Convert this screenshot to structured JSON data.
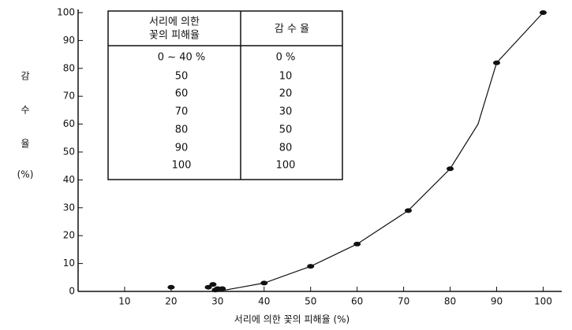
{
  "chart_data": {
    "type": "scatter",
    "xlabel": "서리에 의한 꽃의 피해율 (%)",
    "ylabel": [
      "감",
      "수",
      "율",
      "(%)"
    ],
    "xlim": [
      0,
      104
    ],
    "ylim": [
      0,
      100
    ],
    "xticks": [
      10,
      20,
      30,
      40,
      50,
      60,
      70,
      80,
      90,
      100
    ],
    "yticks": [
      0,
      10,
      20,
      30,
      40,
      50,
      60,
      70,
      80,
      90,
      100
    ],
    "color": "#111111",
    "points": {
      "x": [
        20,
        28,
        29,
        29.5,
        30,
        31,
        40,
        50,
        60,
        71,
        80,
        90,
        100
      ],
      "y": [
        1.5,
        1.5,
        2.5,
        0.5,
        1,
        1,
        3,
        9,
        17,
        29,
        44,
        82,
        100
      ]
    },
    "curve": {
      "x": [
        30,
        35,
        40,
        50,
        60,
        71,
        80,
        86,
        90,
        100
      ],
      "y": [
        0,
        1.5,
        3,
        9,
        17,
        29,
        44,
        60,
        82,
        100
      ]
    },
    "table": {
      "columns": [
        [
          "서리에 의한",
          "꽃의 피해율"
        ],
        "감 수 율"
      ],
      "rows": [
        [
          "0 ~ 40 %",
          "0 %"
        ],
        [
          "50",
          "10"
        ],
        [
          "60",
          "20"
        ],
        [
          "70",
          "30"
        ],
        [
          "80",
          "50"
        ],
        [
          "90",
          "80"
        ],
        [
          "100",
          "100"
        ]
      ]
    }
  }
}
